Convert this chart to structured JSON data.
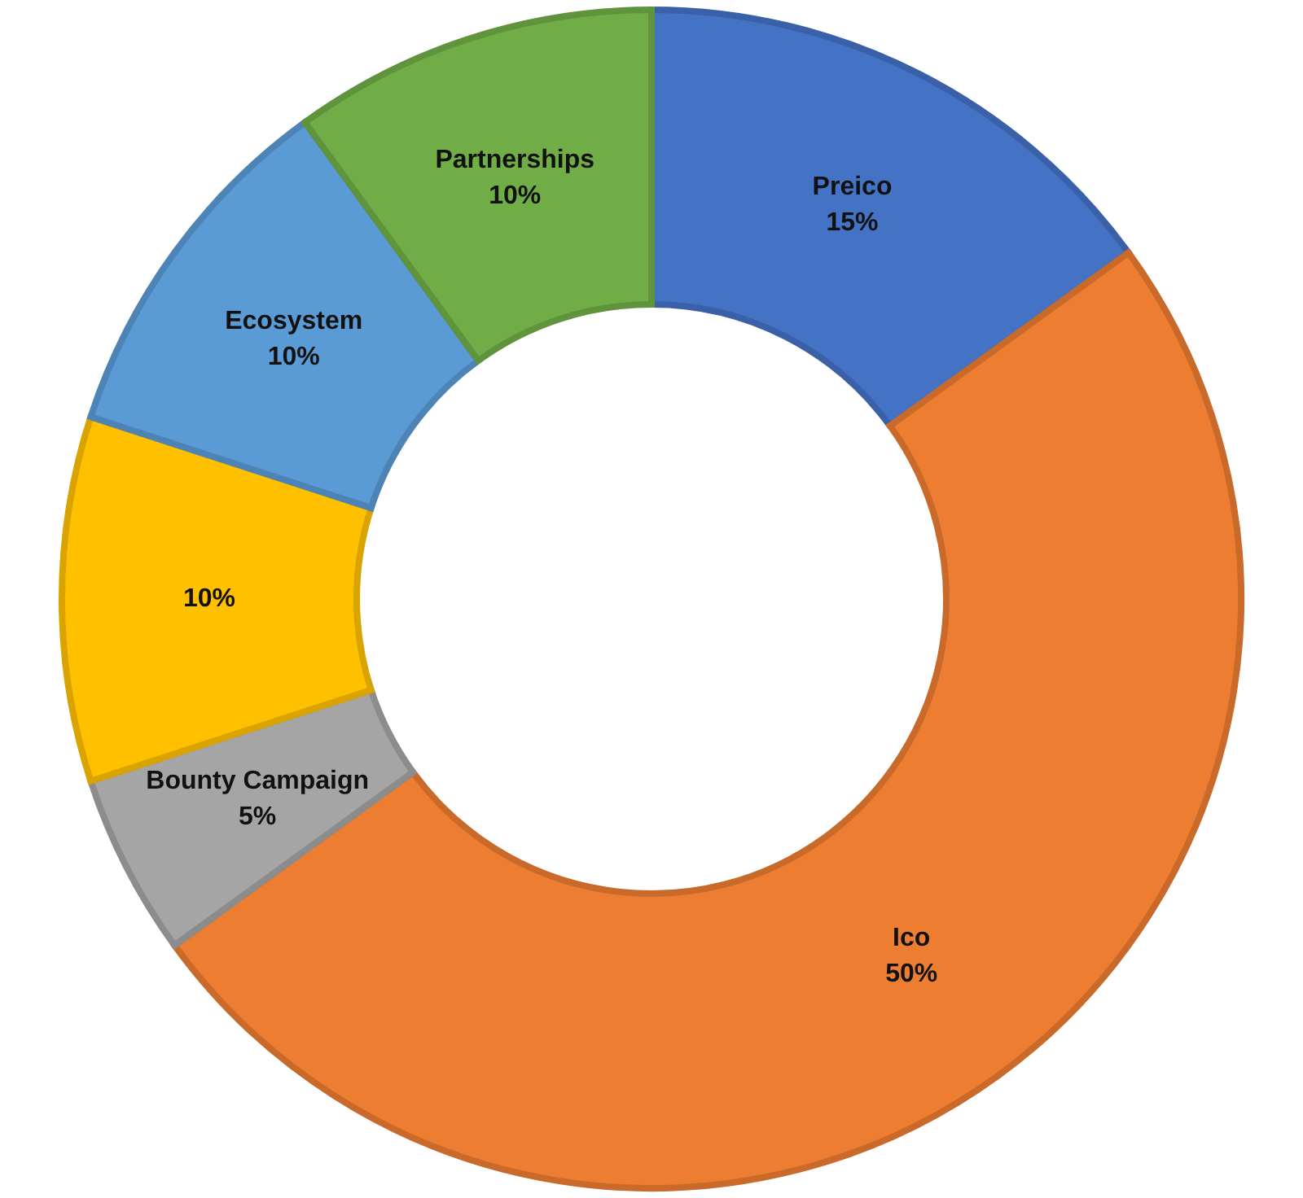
{
  "chart_data": {
    "type": "donut",
    "categories": [
      "Preico",
      "Ico",
      "Bounty Campaign",
      null,
      "Ecosystem",
      "Partnerships"
    ],
    "values": [
      15,
      50,
      5,
      10,
      10,
      10
    ],
    "value_labels": [
      "15%",
      "50%",
      "5%",
      "10%",
      "10%",
      "10%"
    ],
    "colors": [
      "#4472c4",
      "#ed7d31",
      "#a5a5a5",
      "#ffc000",
      "#5b9bd5",
      "#70ad47"
    ],
    "legend": false
  }
}
